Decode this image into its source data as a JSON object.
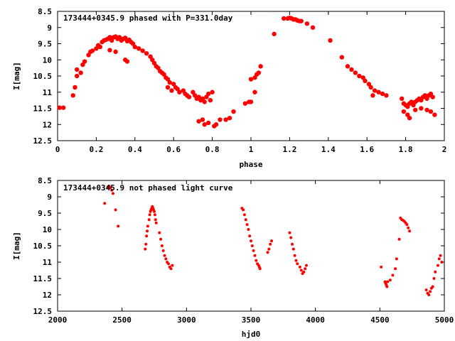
{
  "chart_data": [
    {
      "type": "scatter",
      "title": "173444+0345.9 phased with P=331.0day",
      "xlabel": "phase",
      "ylabel": "I[mag]",
      "xlim": [
        0,
        2
      ],
      "ylim": [
        12.5,
        8.5
      ],
      "y_inverted": true,
      "grid": false,
      "x_ticks": [
        "0",
        "0.2",
        "0.4",
        "0.6",
        "0.8",
        "1",
        "1.2",
        "1.4",
        "1.6",
        "1.8",
        "2"
      ],
      "x_tick_values": [
        0,
        0.2,
        0.4,
        0.6,
        0.8,
        1,
        1.2,
        1.4,
        1.6,
        1.8,
        2
      ],
      "y_ticks": [
        "8.5",
        "9",
        "9.5",
        "10",
        "10.5",
        "11",
        "11.5",
        "12",
        "12.5"
      ],
      "y_tick_values": [
        8.5,
        9,
        9.5,
        10,
        10.5,
        11,
        11.5,
        12,
        12.5
      ],
      "marker_color": "#ff0000",
      "series": [
        {
          "points": [
            [
              0.01,
              11.48
            ],
            [
              0.03,
              11.48
            ],
            [
              0.08,
              11.1
            ],
            [
              0.09,
              10.85
            ],
            [
              0.1,
              10.5
            ],
            [
              0.1,
              10.3
            ],
            [
              0.12,
              10.4
            ],
            [
              0.13,
              10.15
            ],
            [
              0.14,
              10.05
            ],
            [
              0.16,
              9.85
            ],
            [
              0.17,
              9.75
            ],
            [
              0.18,
              9.72
            ],
            [
              0.2,
              9.65
            ],
            [
              0.21,
              9.55
            ],
            [
              0.22,
              9.6
            ],
            [
              0.23,
              9.45
            ],
            [
              0.24,
              9.4
            ],
            [
              0.25,
              9.38
            ],
            [
              0.26,
              9.35
            ],
            [
              0.27,
              9.3
            ],
            [
              0.28,
              9.4
            ],
            [
              0.29,
              9.3
            ],
            [
              0.3,
              9.28
            ],
            [
              0.31,
              9.35
            ],
            [
              0.32,
              9.3
            ],
            [
              0.33,
              9.4
            ],
            [
              0.34,
              9.35
            ],
            [
              0.35,
              9.32
            ],
            [
              0.36,
              9.42
            ],
            [
              0.37,
              9.38
            ],
            [
              0.38,
              9.45
            ],
            [
              0.39,
              9.5
            ],
            [
              0.27,
              9.7
            ],
            [
              0.3,
              9.75
            ],
            [
              0.35,
              10.0
            ],
            [
              0.36,
              10.05
            ],
            [
              0.4,
              9.6
            ],
            [
              0.42,
              9.65
            ],
            [
              0.44,
              9.72
            ],
            [
              0.46,
              9.8
            ],
            [
              0.48,
              9.9
            ],
            [
              0.49,
              10.0
            ],
            [
              0.5,
              10.1
            ],
            [
              0.51,
              10.2
            ],
            [
              0.52,
              10.25
            ],
            [
              0.53,
              10.35
            ],
            [
              0.54,
              10.4
            ],
            [
              0.55,
              10.45
            ],
            [
              0.56,
              10.55
            ],
            [
              0.57,
              10.6
            ],
            [
              0.58,
              10.7
            ],
            [
              0.6,
              10.75
            ],
            [
              0.61,
              10.85
            ],
            [
              0.62,
              10.9
            ],
            [
              0.63,
              11.0
            ],
            [
              0.65,
              10.95
            ],
            [
              0.66,
              11.05
            ],
            [
              0.67,
              11.1
            ],
            [
              0.68,
              11.15
            ],
            [
              0.7,
              11.0
            ],
            [
              0.71,
              11.1
            ],
            [
              0.72,
              11.2
            ],
            [
              0.73,
              11.15
            ],
            [
              0.74,
              11.25
            ],
            [
              0.75,
              11.2
            ],
            [
              0.76,
              11.3
            ],
            [
              0.77,
              11.15
            ],
            [
              0.78,
              11.05
            ],
            [
              0.79,
              11.25
            ],
            [
              0.8,
              11.0
            ],
            [
              0.57,
              10.85
            ],
            [
              0.59,
              10.95
            ],
            [
              0.73,
              11.9
            ],
            [
              0.75,
              11.85
            ],
            [
              0.76,
              12.0
            ],
            [
              0.78,
              11.95
            ],
            [
              0.81,
              12.05
            ],
            [
              0.82,
              12.0
            ],
            [
              0.84,
              11.85
            ],
            [
              0.87,
              11.85
            ],
            [
              0.89,
              11.8
            ],
            [
              0.91,
              11.6
            ],
            [
              0.97,
              11.35
            ],
            [
              0.99,
              11.3
            ],
            [
              1.0,
              11.3
            ],
            [
              1.02,
              11.0
            ],
            [
              1.0,
              10.6
            ],
            [
              1.02,
              10.55
            ],
            [
              1.03,
              10.45
            ],
            [
              1.04,
              10.4
            ],
            [
              1.05,
              10.2
            ],
            [
              1.12,
              9.2
            ],
            [
              1.17,
              8.72
            ],
            [
              1.19,
              8.72
            ],
            [
              1.2,
              8.7
            ],
            [
              1.21,
              8.72
            ],
            [
              1.22,
              8.75
            ],
            [
              1.23,
              8.75
            ],
            [
              1.24,
              8.78
            ],
            [
              1.25,
              8.8
            ],
            [
              1.26,
              8.8
            ],
            [
              1.29,
              8.88
            ],
            [
              1.32,
              9.0
            ],
            [
              1.41,
              9.4
            ],
            [
              1.47,
              9.92
            ],
            [
              1.5,
              10.2
            ],
            [
              1.52,
              10.3
            ],
            [
              1.54,
              10.4
            ],
            [
              1.56,
              10.5
            ],
            [
              1.58,
              10.55
            ],
            [
              1.59,
              10.65
            ],
            [
              1.61,
              10.75
            ],
            [
              1.62,
              10.85
            ],
            [
              1.64,
              10.95
            ],
            [
              1.66,
              11.0
            ],
            [
              1.68,
              11.05
            ],
            [
              1.7,
              11.1
            ],
            [
              1.63,
              11.1
            ],
            [
              1.78,
              11.2
            ],
            [
              1.79,
              11.35
            ],
            [
              1.8,
              11.4
            ],
            [
              1.81,
              11.45
            ],
            [
              1.82,
              11.35
            ],
            [
              1.83,
              11.3
            ],
            [
              1.84,
              11.4
            ],
            [
              1.85,
              11.3
            ],
            [
              1.86,
              11.25
            ],
            [
              1.87,
              11.2
            ],
            [
              1.88,
              11.25
            ],
            [
              1.89,
              11.15
            ],
            [
              1.9,
              11.1
            ],
            [
              1.91,
              11.2
            ],
            [
              1.92,
              11.1
            ],
            [
              1.93,
              11.05
            ],
            [
              1.94,
              11.15
            ],
            [
              1.79,
              11.6
            ],
            [
              1.81,
              11.7
            ],
            [
              1.82,
              11.8
            ],
            [
              1.85,
              11.55
            ],
            [
              1.88,
              11.5
            ],
            [
              1.91,
              11.55
            ],
            [
              1.93,
              11.6
            ],
            [
              1.95,
              11.7
            ]
          ]
        }
      ]
    },
    {
      "type": "scatter",
      "title": "173444+0345.9 not phased light curve",
      "xlabel": "hjd0",
      "ylabel": "I[mag]",
      "xlim": [
        2000,
        5000
      ],
      "ylim": [
        12.5,
        8.5
      ],
      "y_inverted": true,
      "grid": false,
      "x_ticks": [
        "2000",
        "2500",
        "3000",
        "3500",
        "4000",
        "4500",
        "5000"
      ],
      "x_tick_values": [
        2000,
        2500,
        3000,
        3500,
        4000,
        4500,
        5000
      ],
      "y_ticks": [
        "8.5",
        "9",
        "9.5",
        "10",
        "10.5",
        "11",
        "11.5",
        "12",
        "12.5"
      ],
      "y_tick_values": [
        8.5,
        9,
        9.5,
        10,
        10.5,
        11,
        11.5,
        12,
        12.5
      ],
      "marker_color": "#ff0000",
      "series": [
        {
          "points": [
            [
              2365,
              9.2
            ],
            [
              2390,
              8.7
            ],
            [
              2400,
              8.68
            ],
            [
              2410,
              8.72
            ],
            [
              2420,
              8.8
            ],
            [
              2430,
              8.9
            ],
            [
              2450,
              9.4
            ],
            [
              2470,
              9.9
            ],
            [
              2680,
              10.6
            ],
            [
              2685,
              10.45
            ],
            [
              2690,
              10.2
            ],
            [
              2695,
              10.05
            ],
            [
              2700,
              9.9
            ],
            [
              2710,
              9.7
            ],
            [
              2715,
              9.55
            ],
            [
              2720,
              9.45
            ],
            [
              2725,
              9.4
            ],
            [
              2730,
              9.35
            ],
            [
              2735,
              9.3
            ],
            [
              2740,
              9.35
            ],
            [
              2745,
              9.4
            ],
            [
              2750,
              9.45
            ],
            [
              2755,
              9.55
            ],
            [
              2760,
              9.7
            ],
            [
              2765,
              9.8
            ],
            [
              2790,
              10.1
            ],
            [
              2800,
              10.3
            ],
            [
              2810,
              10.5
            ],
            [
              2820,
              10.65
            ],
            [
              2830,
              10.8
            ],
            [
              2840,
              10.9
            ],
            [
              2850,
              11.0
            ],
            [
              2860,
              11.05
            ],
            [
              2870,
              11.15
            ],
            [
              2880,
              11.2
            ],
            [
              2890,
              11.1
            ],
            [
              3430,
              9.35
            ],
            [
              3440,
              9.4
            ],
            [
              3450,
              9.55
            ],
            [
              3460,
              9.7
            ],
            [
              3470,
              9.85
            ],
            [
              3480,
              10.0
            ],
            [
              3490,
              10.2
            ],
            [
              3500,
              10.35
            ],
            [
              3510,
              10.5
            ],
            [
              3520,
              10.65
            ],
            [
              3530,
              10.8
            ],
            [
              3540,
              10.95
            ],
            [
              3550,
              11.05
            ],
            [
              3560,
              11.1
            ],
            [
              3565,
              11.15
            ],
            [
              3570,
              11.2
            ],
            [
              3630,
              10.7
            ],
            [
              3640,
              10.6
            ],
            [
              3650,
              10.45
            ],
            [
              3660,
              10.35
            ],
            [
              3800,
              10.1
            ],
            [
              3810,
              10.25
            ],
            [
              3820,
              10.45
            ],
            [
              3830,
              10.6
            ],
            [
              3840,
              10.8
            ],
            [
              3850,
              10.95
            ],
            [
              3860,
              11.05
            ],
            [
              3880,
              11.15
            ],
            [
              3890,
              11.25
            ],
            [
              3900,
              11.35
            ],
            [
              3910,
              11.3
            ],
            [
              3920,
              11.2
            ],
            [
              3930,
              11.1
            ],
            [
              4510,
              11.15
            ],
            [
              4540,
              11.6
            ],
            [
              4545,
              11.65
            ],
            [
              4550,
              11.7
            ],
            [
              4555,
              11.75
            ],
            [
              4560,
              11.6
            ],
            [
              4580,
              11.55
            ],
            [
              4600,
              11.4
            ],
            [
              4620,
              11.2
            ],
            [
              4630,
              10.9
            ],
            [
              4650,
              10.3
            ],
            [
              4660,
              9.65
            ],
            [
              4670,
              9.7
            ],
            [
              4680,
              9.72
            ],
            [
              4690,
              9.75
            ],
            [
              4700,
              9.8
            ],
            [
              4710,
              9.85
            ],
            [
              4720,
              9.95
            ],
            [
              4730,
              10.05
            ],
            [
              4860,
              11.85
            ],
            [
              4870,
              11.95
            ],
            [
              4880,
              12.0
            ],
            [
              4890,
              11.9
            ],
            [
              4900,
              11.8
            ],
            [
              4910,
              11.75
            ],
            [
              4920,
              11.5
            ],
            [
              4930,
              11.3
            ],
            [
              4950,
              11.1
            ],
            [
              4960,
              10.9
            ],
            [
              4970,
              10.8
            ],
            [
              4980,
              11.0
            ]
          ]
        }
      ]
    }
  ]
}
